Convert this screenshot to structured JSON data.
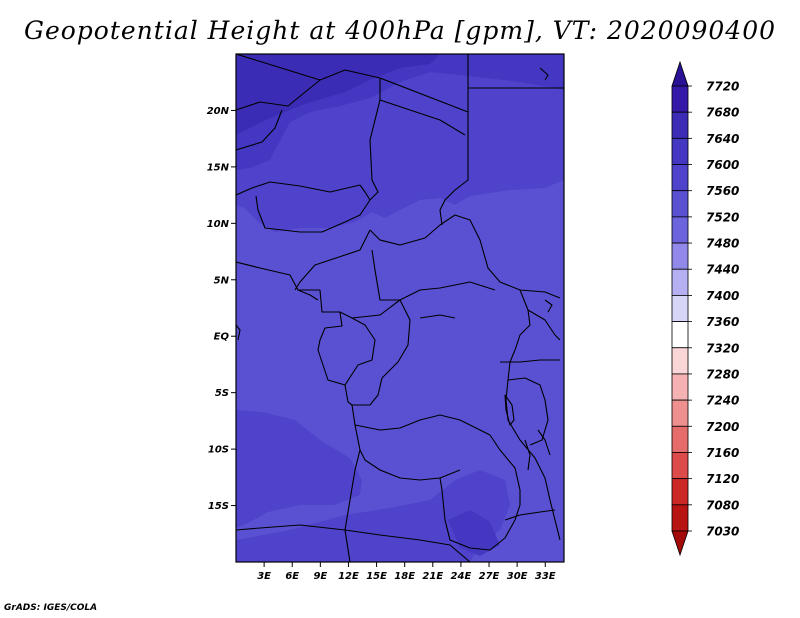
{
  "title": "Geopotential Height at 400hPa [gpm], VT: 2020090400",
  "credit": "GrADS: IGES/COLA",
  "map": {
    "lat_labels": [
      "20N",
      "15N",
      "10N",
      "5N",
      "EQ",
      "5S",
      "10S",
      "15S"
    ],
    "lat_values": [
      20,
      15,
      10,
      5,
      0,
      -5,
      -10,
      -15
    ],
    "lon_labels": [
      "3E",
      "6E",
      "9E",
      "12E",
      "15E",
      "18E",
      "21E",
      "24E",
      "27E",
      "30E",
      "33E"
    ],
    "lon_values": [
      3,
      6,
      9,
      12,
      15,
      18,
      21,
      24,
      27,
      30,
      33
    ],
    "extent": {
      "lon_min": 0,
      "lon_max": 35,
      "lat_min": -20,
      "lat_max": 25
    }
  },
  "colorbar": {
    "labels": [
      "7720",
      "7680",
      "7640",
      "7600",
      "7560",
      "7520",
      "7480",
      "7440",
      "7400",
      "7360",
      "7320",
      "7280",
      "7240",
      "7200",
      "7160",
      "7120",
      "7080",
      "7030"
    ],
    "colors": [
      "#2a1196",
      "#3419a8",
      "#3b2cb6",
      "#4437c2",
      "#4e43ca",
      "#5a51d2",
      "#6c64dc",
      "#9189ea",
      "#b5b0f2",
      "#d8d6f8",
      "#ffffff",
      "#fbd6d6",
      "#f6b2b2",
      "#ef9090",
      "#e66c6c",
      "#dc4a4a",
      "#cc2828",
      "#b81414",
      "#a40a0a"
    ]
  }
}
